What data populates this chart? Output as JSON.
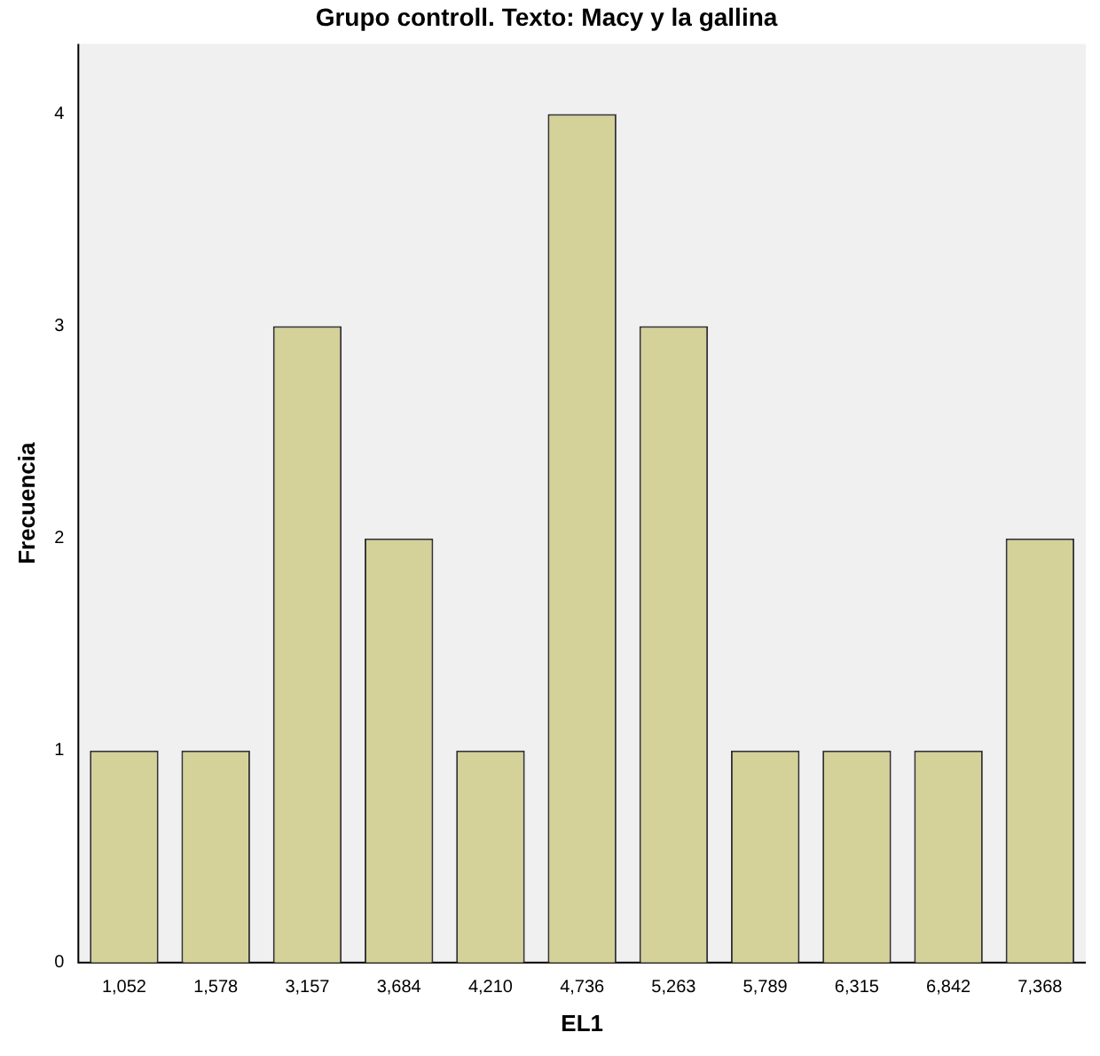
{
  "chart_data": {
    "type": "bar",
    "title": "Grupo controll. Texto: Macy y la gallina",
    "xlabel": "EL1",
    "ylabel": "Frecuencia",
    "categories": [
      "1,052",
      "1,578",
      "3,157",
      "3,684",
      "4,210",
      "4,736",
      "5,263",
      "5,789",
      "6,315",
      "6,842",
      "7,368"
    ],
    "values": [
      1,
      1,
      3,
      2,
      1,
      4,
      3,
      1,
      1,
      1,
      2
    ],
    "color": "#d4d199",
    "ylim": [
      0,
      4.33
    ],
    "yticks": [
      0,
      1,
      2,
      3,
      4
    ],
    "grid": false,
    "legend": false
  }
}
